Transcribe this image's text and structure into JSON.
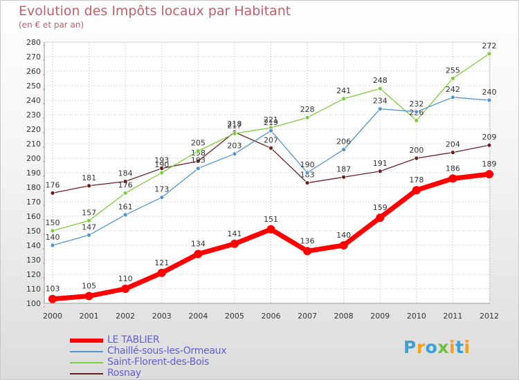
{
  "chart_data": {
    "type": "line",
    "title": "Evolution des Impôts locaux par Habitant",
    "subtitle": "(en € et par an)",
    "xlabel": "",
    "ylabel": "",
    "categories": [
      "2000",
      "2001",
      "2002",
      "2003",
      "2004",
      "2005",
      "2006",
      "2007",
      "2008",
      "2009",
      "2010",
      "2011",
      "2012"
    ],
    "ylim": [
      100,
      280
    ],
    "yticks": [
      100,
      110,
      120,
      130,
      140,
      150,
      160,
      170,
      180,
      190,
      200,
      210,
      220,
      230,
      240,
      250,
      260,
      270,
      280
    ],
    "grid": true,
    "series": [
      {
        "name": "LE TABLIER",
        "color": "#ff0000",
        "values": [
          103,
          105,
          110,
          121,
          134,
          141,
          151,
          136,
          140,
          159,
          178,
          186,
          189
        ]
      },
      {
        "name": "Chaillé-sous-les-Ormeaux",
        "color": "#4f94cd",
        "values": [
          140,
          147,
          161,
          173,
          193,
          203,
          219,
          190,
          206,
          234,
          232,
          242,
          240
        ]
      },
      {
        "name": "Saint-Florent-des-Bois",
        "color": "#7ccd3c",
        "values": [
          150,
          157,
          176,
          190,
          205,
          217,
          221,
          228,
          241,
          248,
          226,
          255,
          272
        ]
      },
      {
        "name": "Rosnay",
        "color": "#6b1f1f",
        "values": [
          176,
          181,
          184,
          193,
          198,
          218,
          207,
          183,
          187,
          191,
          200,
          204,
          209
        ]
      }
    ]
  },
  "legend": {
    "items": [
      {
        "label": "LE TABLIER",
        "color": "#ff0000"
      },
      {
        "label": "Chaillé-sous-les-Ormeaux",
        "color": "#4f94cd"
      },
      {
        "label": "Saint-Florent-des-Bois",
        "color": "#7ccd3c"
      },
      {
        "label": "Rosnay",
        "color": "#6b1f1f"
      }
    ]
  },
  "logo": {
    "letters": [
      "P",
      "r",
      "o",
      "x",
      "i",
      "t",
      "i"
    ],
    "colors": [
      "#3aa0d8",
      "#f0a020",
      "#3aa0d8",
      "#6fbe3c",
      "#f0a020",
      "#3aa0d8",
      "#f0a020"
    ]
  }
}
